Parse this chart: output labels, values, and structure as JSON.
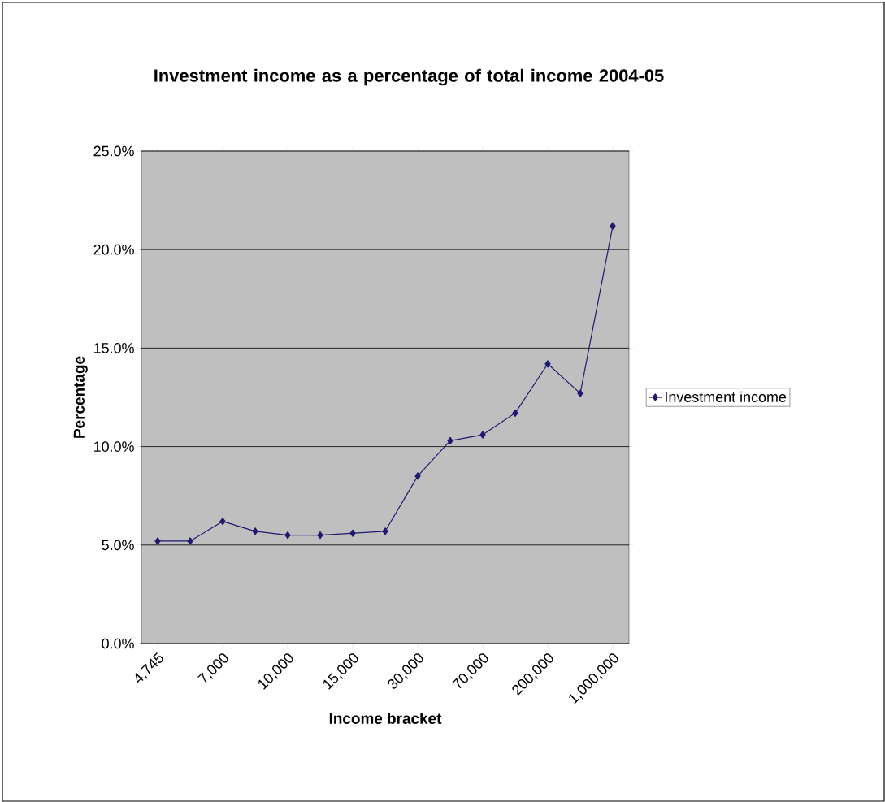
{
  "chart_data": {
    "type": "line",
    "title": "Investment income as a percentage of total income 2004-05",
    "xlabel": "Income bracket",
    "ylabel": "Percentage",
    "categories": [
      "4,745",
      null,
      "7,000",
      null,
      "10,000",
      null,
      "15,000",
      null,
      "30,000",
      null,
      "70,000",
      null,
      "200,000",
      null,
      "1,000,000"
    ],
    "series": [
      {
        "name": "Investment income",
        "color": "#1f1a6e",
        "values": [
          5.2,
          5.2,
          6.2,
          5.7,
          5.5,
          5.5,
          5.6,
          5.7,
          8.5,
          10.3,
          10.6,
          11.7,
          14.2,
          12.7,
          21.2
        ]
      }
    ],
    "ylim": [
      0,
      25
    ],
    "yticks": [
      {
        "value": 0,
        "label": "0.0%"
      },
      {
        "value": 5,
        "label": "5.0%"
      },
      {
        "value": 10,
        "label": "10.0%"
      },
      {
        "value": 15,
        "label": "15.0%"
      },
      {
        "value": 20,
        "label": "20.0%"
      },
      {
        "value": 25,
        "label": "25.0%"
      }
    ],
    "grid": "y",
    "legend": "right",
    "marker": "diamond",
    "line_style": "solid"
  }
}
